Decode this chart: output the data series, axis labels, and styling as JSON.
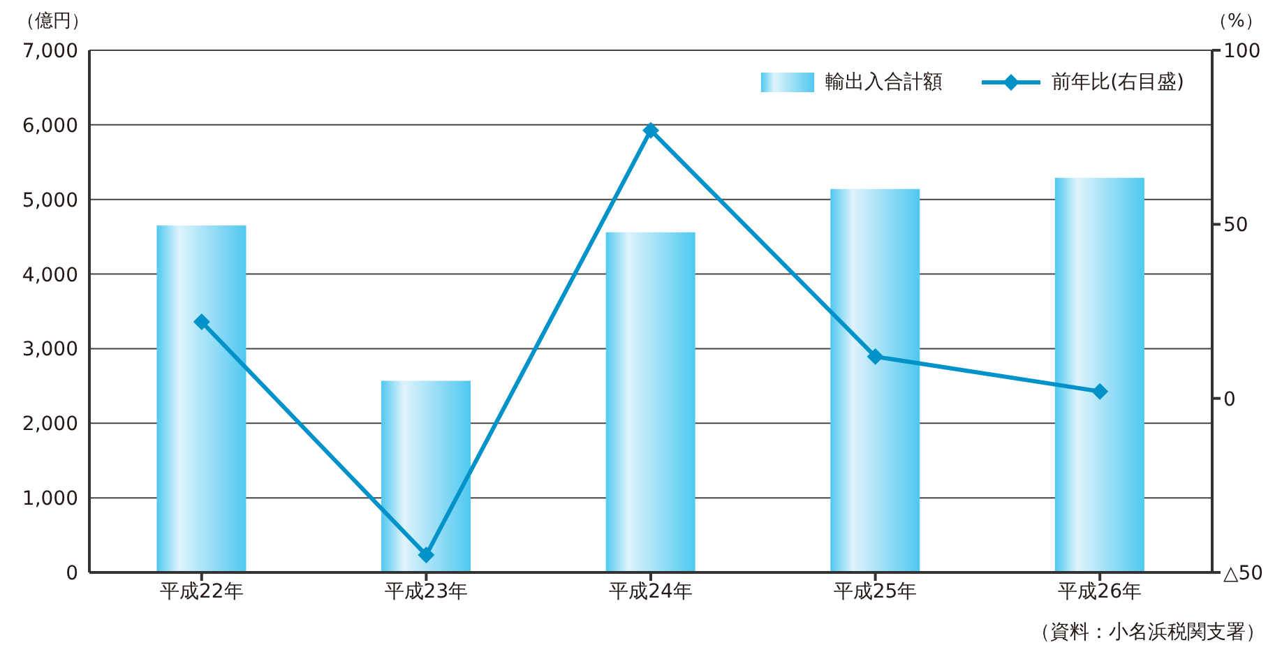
{
  "chart_data": {
    "type": "bar",
    "categories": [
      "平成22年",
      "平成23年",
      "平成24年",
      "平成25年",
      "平成26年"
    ],
    "series": [
      {
        "name": "輸出入合計額",
        "color": "#4fc8f0",
        "values": [
          4650,
          2570,
          4560,
          5140,
          5290
        ]
      },
      {
        "name": "前年比(右目盛)",
        "type": "line",
        "axis": "y2",
        "color": "#0092c8",
        "marker": "diamond",
        "values": [
          22,
          -45,
          77,
          12,
          2
        ]
      }
    ],
    "ylabel": "（億円）",
    "y2label": "（%）",
    "ylim": [
      0,
      7000
    ],
    "yticks": [
      {
        "value": 0,
        "label": "0"
      },
      {
        "value": 1000,
        "label": "1,000"
      },
      {
        "value": 2000,
        "label": "2,000"
      },
      {
        "value": 3000,
        "label": "3,000"
      },
      {
        "value": 4000,
        "label": "4,000"
      },
      {
        "value": 5000,
        "label": "5,000"
      },
      {
        "value": 6000,
        "label": "6,000"
      },
      {
        "value": 7000,
        "label": "7,000"
      }
    ],
    "y2lim": [
      -50,
      100
    ],
    "y2ticks": [
      {
        "value": -50,
        "label": "△50"
      },
      0,
      50,
      100
    ],
    "grid": "y",
    "legend": "top right",
    "annotations": [
      "（資料：小名浜税関支署）"
    ]
  }
}
